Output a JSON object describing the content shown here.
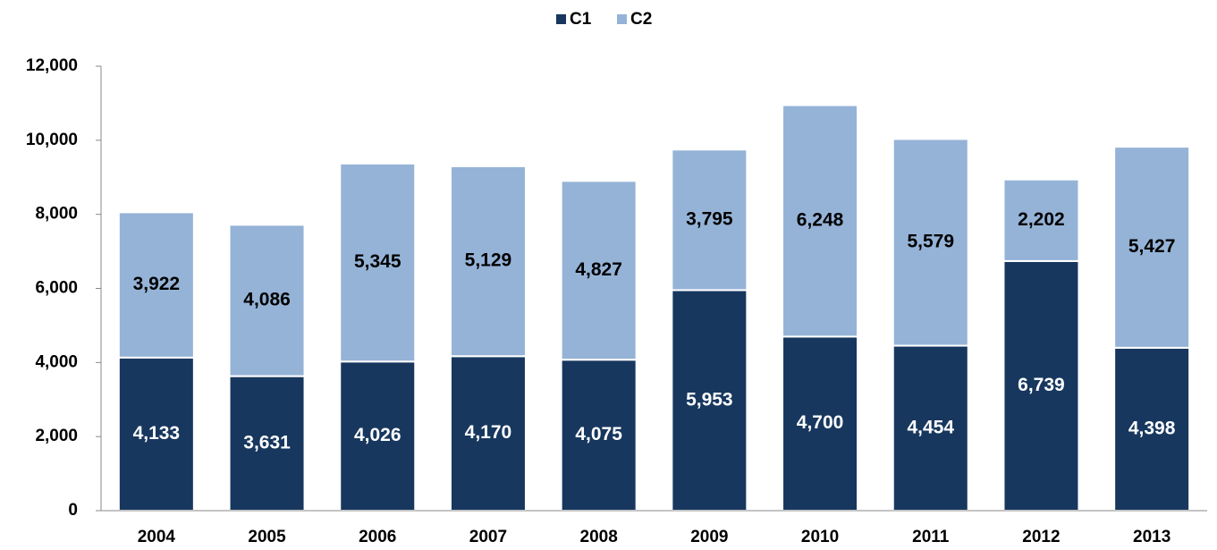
{
  "chart_data": {
    "type": "stacked_bar",
    "categories": [
      "2004",
      "2005",
      "2006",
      "2007",
      "2008",
      "2009",
      "2010",
      "2011",
      "2012",
      "2013"
    ],
    "series": [
      {
        "name": "C1",
        "color": "#17375e",
        "label_color": "#ffffff",
        "values": [
          4133,
          3631,
          4026,
          4170,
          4075,
          5953,
          4700,
          4454,
          6739,
          4398
        ],
        "value_labels": [
          "4,133",
          "3,631",
          "4,026",
          "4,170",
          "4,075",
          "5,953",
          "4,700",
          "4,454",
          "6,739",
          "4,398"
        ]
      },
      {
        "name": "C2",
        "color": "#95b3d7",
        "label_color": "#000000",
        "values": [
          3922,
          4086,
          5345,
          5129,
          4827,
          3795,
          6248,
          5579,
          2202,
          5427
        ],
        "value_labels": [
          "3,922",
          "4,086",
          "5,345",
          "5,129",
          "4,827",
          "3,795",
          "6,248",
          "5,579",
          "2,202",
          "5,427"
        ]
      }
    ],
    "ylim": [
      0,
      12000
    ],
    "yticks": [
      0,
      {
        "value": 2000,
        "label": "2,000"
      },
      {
        "value": 4000,
        "label": "4,000"
      },
      {
        "value": 6000,
        "label": "6,000"
      },
      {
        "value": 8000,
        "label": "8,000"
      },
      {
        "value": 10000,
        "label": "10,000"
      },
      {
        "value": 12000,
        "label": "12,000"
      }
    ],
    "legend": "top",
    "grid": false
  }
}
